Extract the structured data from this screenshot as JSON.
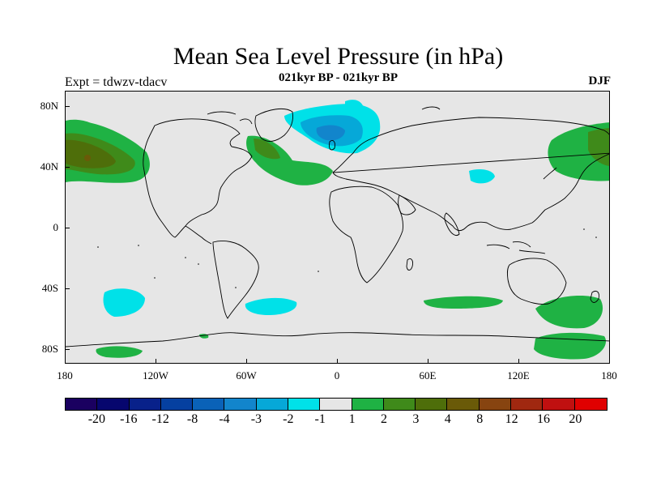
{
  "header": {
    "title": "Mean Sea Level Pressure (in hPa)",
    "subtitle": "021kyr BP - 021kyr BP",
    "experiment": "Expt = tdwzv-tdacv",
    "season": "DJF"
  },
  "map": {
    "projection": "cylindrical equidistant",
    "land_color": "#e6e6e6",
    "coastline_color": "#000000",
    "lat_labels": [
      "80N",
      "40N",
      "0",
      "40S",
      "80S"
    ],
    "lon_labels": [
      "180",
      "120W",
      "60W",
      "0",
      "60E",
      "120E",
      "180"
    ]
  },
  "colorbar": {
    "colors": [
      "#1a0060",
      "#06066e",
      "#08218a",
      "#0540a0",
      "#0a62b8",
      "#1285cc",
      "#06a8d8",
      "#00e1e8",
      "#e6e6e6",
      "#1fb244",
      "#3f8a1a",
      "#4e6e0a",
      "#6a5a08",
      "#874410",
      "#a02810",
      "#c01010",
      "#e00000"
    ],
    "labels": [
      "-20",
      "-16",
      "-12",
      "-8",
      "-4",
      "-3",
      "-2",
      "-1",
      "1",
      "2",
      "3",
      "4",
      "8",
      "12",
      "16",
      "20"
    ]
  }
}
